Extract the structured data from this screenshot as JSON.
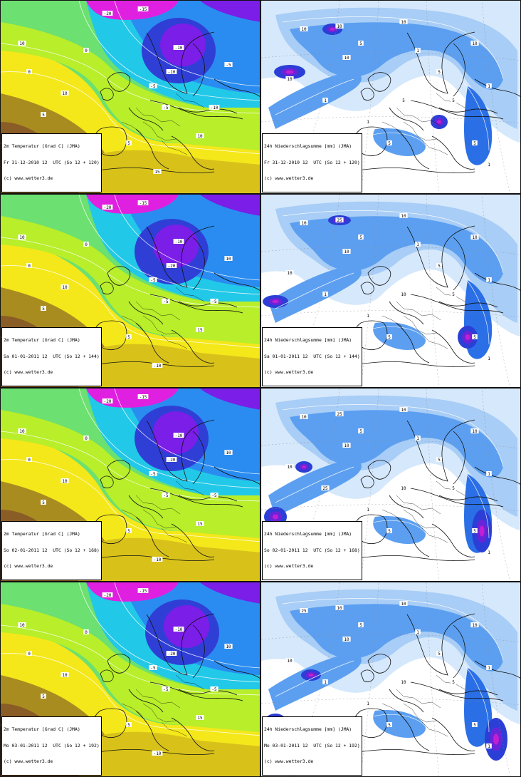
{
  "panels": [
    {
      "variable": "temperature",
      "title": "2m Temperatur [Grad C] (JMA)",
      "date_line": "Fr 31-12-2010 12  UTC (So 12 + 120)",
      "credit": "(c) www.wetter3.de",
      "contour_labels": [
        "-20",
        "-15",
        "-10",
        "-10",
        "-5",
        "-5",
        "0",
        "0",
        "5",
        "5",
        "10",
        "10",
        "15",
        "15",
        "15",
        "-10",
        "-5",
        "10"
      ]
    },
    {
      "variable": "precipitation",
      "title": "24h Niederschlagsumme [mm] (JMA)",
      "date_line": "Fr 31-12-2010 12  UTC (So 12 + 120)",
      "credit": "(c) www.wetter3.de",
      "contour_labels": [
        "10",
        "10",
        "5",
        "10",
        "1",
        "5",
        "10",
        "1",
        "5",
        "1",
        "10",
        "5",
        "1",
        "10",
        "5",
        "1",
        "5",
        "1"
      ]
    },
    {
      "variable": "temperature",
      "title": "2m Temperatur [Grad C] (JMA)",
      "date_line": "Sa 01-01-2011 12  UTC (So 12 + 144)",
      "credit": "(c) www.wetter3.de",
      "contour_labels": [
        "-20",
        "-15",
        "-10",
        "-20",
        "-5",
        "-5",
        "0",
        "0",
        "5",
        "5",
        "10",
        "10",
        "15",
        "15",
        "-10",
        "-5",
        "10",
        "15"
      ]
    },
    {
      "variable": "precipitation",
      "title": "24h Niederschlagsumme [mm] (JMA)",
      "date_line": "Sa 01-01-2011 12  UTC (So 12 + 144)",
      "credit": "(c) www.wetter3.de",
      "contour_labels": [
        "10",
        "25",
        "5",
        "10",
        "1",
        "5",
        "10",
        "1",
        "5",
        "1",
        "10",
        "5",
        "1",
        "10",
        "5",
        "1",
        "10",
        "1"
      ]
    },
    {
      "variable": "temperature",
      "title": "2m Temperatur [Grad C] (JMA)",
      "date_line": "So 02-01-2011 12  UTC (So 12 + 168)",
      "credit": "(c) www.wetter3.de",
      "contour_labels": [
        "-20",
        "-15",
        "-10",
        "-20",
        "-5",
        "-5",
        "0",
        "0",
        "5",
        "5",
        "10",
        "10",
        "15",
        "15",
        "-10",
        "-5",
        "10",
        "15"
      ]
    },
    {
      "variable": "precipitation",
      "title": "24h Niederschlagsumme [mm] (JMA)",
      "date_line": "So 02-01-2011 12  UTC (So 12 + 168)",
      "credit": "(c) www.wetter3.de",
      "contour_labels": [
        "10",
        "25",
        "5",
        "10",
        "1",
        "5",
        "10",
        "1",
        "5",
        "25",
        "10",
        "5",
        "1",
        "10",
        "5",
        "1",
        "10",
        "1"
      ]
    },
    {
      "variable": "temperature",
      "title": "2m Temperatur [Grad C] (JMA)",
      "date_line": "Mo 03-01-2011 12  UTC (So 12 + 192)",
      "credit": "(c) www.wetter3.de",
      "contour_labels": [
        "-20",
        "-15",
        "-10",
        "-20",
        "-5",
        "-5",
        "0",
        "0",
        "5",
        "5",
        "10",
        "10",
        "15",
        "15",
        "-10",
        "-5",
        "10",
        "15"
      ]
    },
    {
      "variable": "precipitation",
      "title": "24h Niederschlagsumme [mm] (JMA)",
      "date_line": "Mo 03-01-2011 12  UTC (So 12 + 192)",
      "credit": "(c) www.wetter3.de",
      "contour_labels": [
        "25",
        "10",
        "5",
        "10",
        "1",
        "5",
        "10",
        "1",
        "5",
        "1",
        "10",
        "5",
        "1",
        "10",
        "5",
        "1",
        "10",
        "1"
      ]
    }
  ],
  "colors": {
    "temperature": {
      "magenta": "#e020e0",
      "purple": "#7a1ee8",
      "deep_blue": "#2f3fd6",
      "blue": "#2a8cf0",
      "cyan": "#22c8e8",
      "teal": "#2ad2b0",
      "green": "#6ce070",
      "lime": "#b8ee2a",
      "yellow": "#f4e81a",
      "gold": "#d8c21a",
      "olive": "#a88c20",
      "brown": "#8a5c26"
    },
    "precipitation": {
      "white": "#ffffff",
      "pale": "#d6e8fb",
      "light": "#a8cdf6",
      "mid": "#5c9ff0",
      "blue": "#2a6fe6",
      "deep": "#2b3ed6",
      "violet": "#6a24d8",
      "magenta": "#c21fd2"
    },
    "coast": "#111111",
    "contour": "#ffffff"
  }
}
